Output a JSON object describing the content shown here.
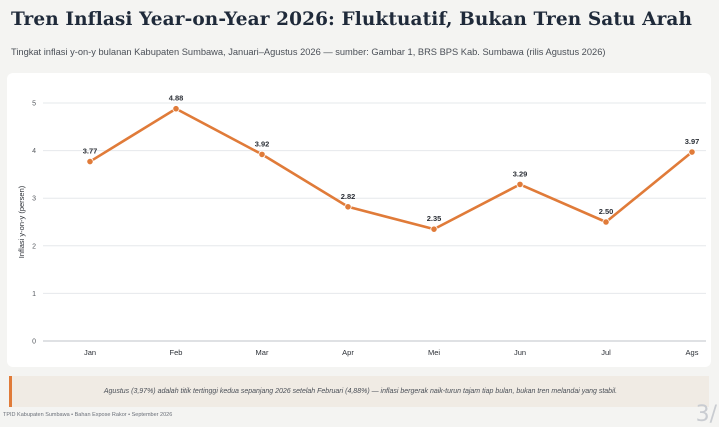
{
  "header": {
    "title": "Tren Inflasi Year-on-Year 2026: Fluktuatif, Bukan Tren Satu Arah",
    "subtitle": "Tingkat inflasi y-on-y bulanan Kabupaten Sumbawa, Januari–Agustus 2026 — sumber: Gambar 1, BRS BPS Kab. Sumbawa (rilis Agustus 2026)"
  },
  "chart_data": {
    "type": "line",
    "categories": [
      "Jan",
      "Feb",
      "Mar",
      "Apr",
      "Mei",
      "Jun",
      "Jul",
      "Ags"
    ],
    "values": [
      3.77,
      4.88,
      3.92,
      2.82,
      2.35,
      3.29,
      2.5,
      3.97
    ],
    "data_labels": [
      "3.77",
      "4.88",
      "3.92",
      "2.82",
      "2.35",
      "3.29",
      "2.50",
      "3.97"
    ],
    "ylabel": "Inflasi y-on-y (persen)",
    "xlabel": "",
    "ylim": [
      0,
      5
    ],
    "yticks": [
      0,
      1,
      2,
      3,
      4,
      5
    ],
    "grid": true,
    "line_color": "#e07b39"
  },
  "note": {
    "text": "Agustus (3,97%) adalah titik tertinggi kedua sepanjang 2026 setelah Februari (4,88%) — inflasi bergerak naik-turun tajam tiap bulan, bukan tren melandai yang stabil."
  },
  "footer": {
    "text": "TPID Kabupaten Sumbawa  •  Bahan Expose Rakor  •  September 2026"
  },
  "page_number": "3/"
}
